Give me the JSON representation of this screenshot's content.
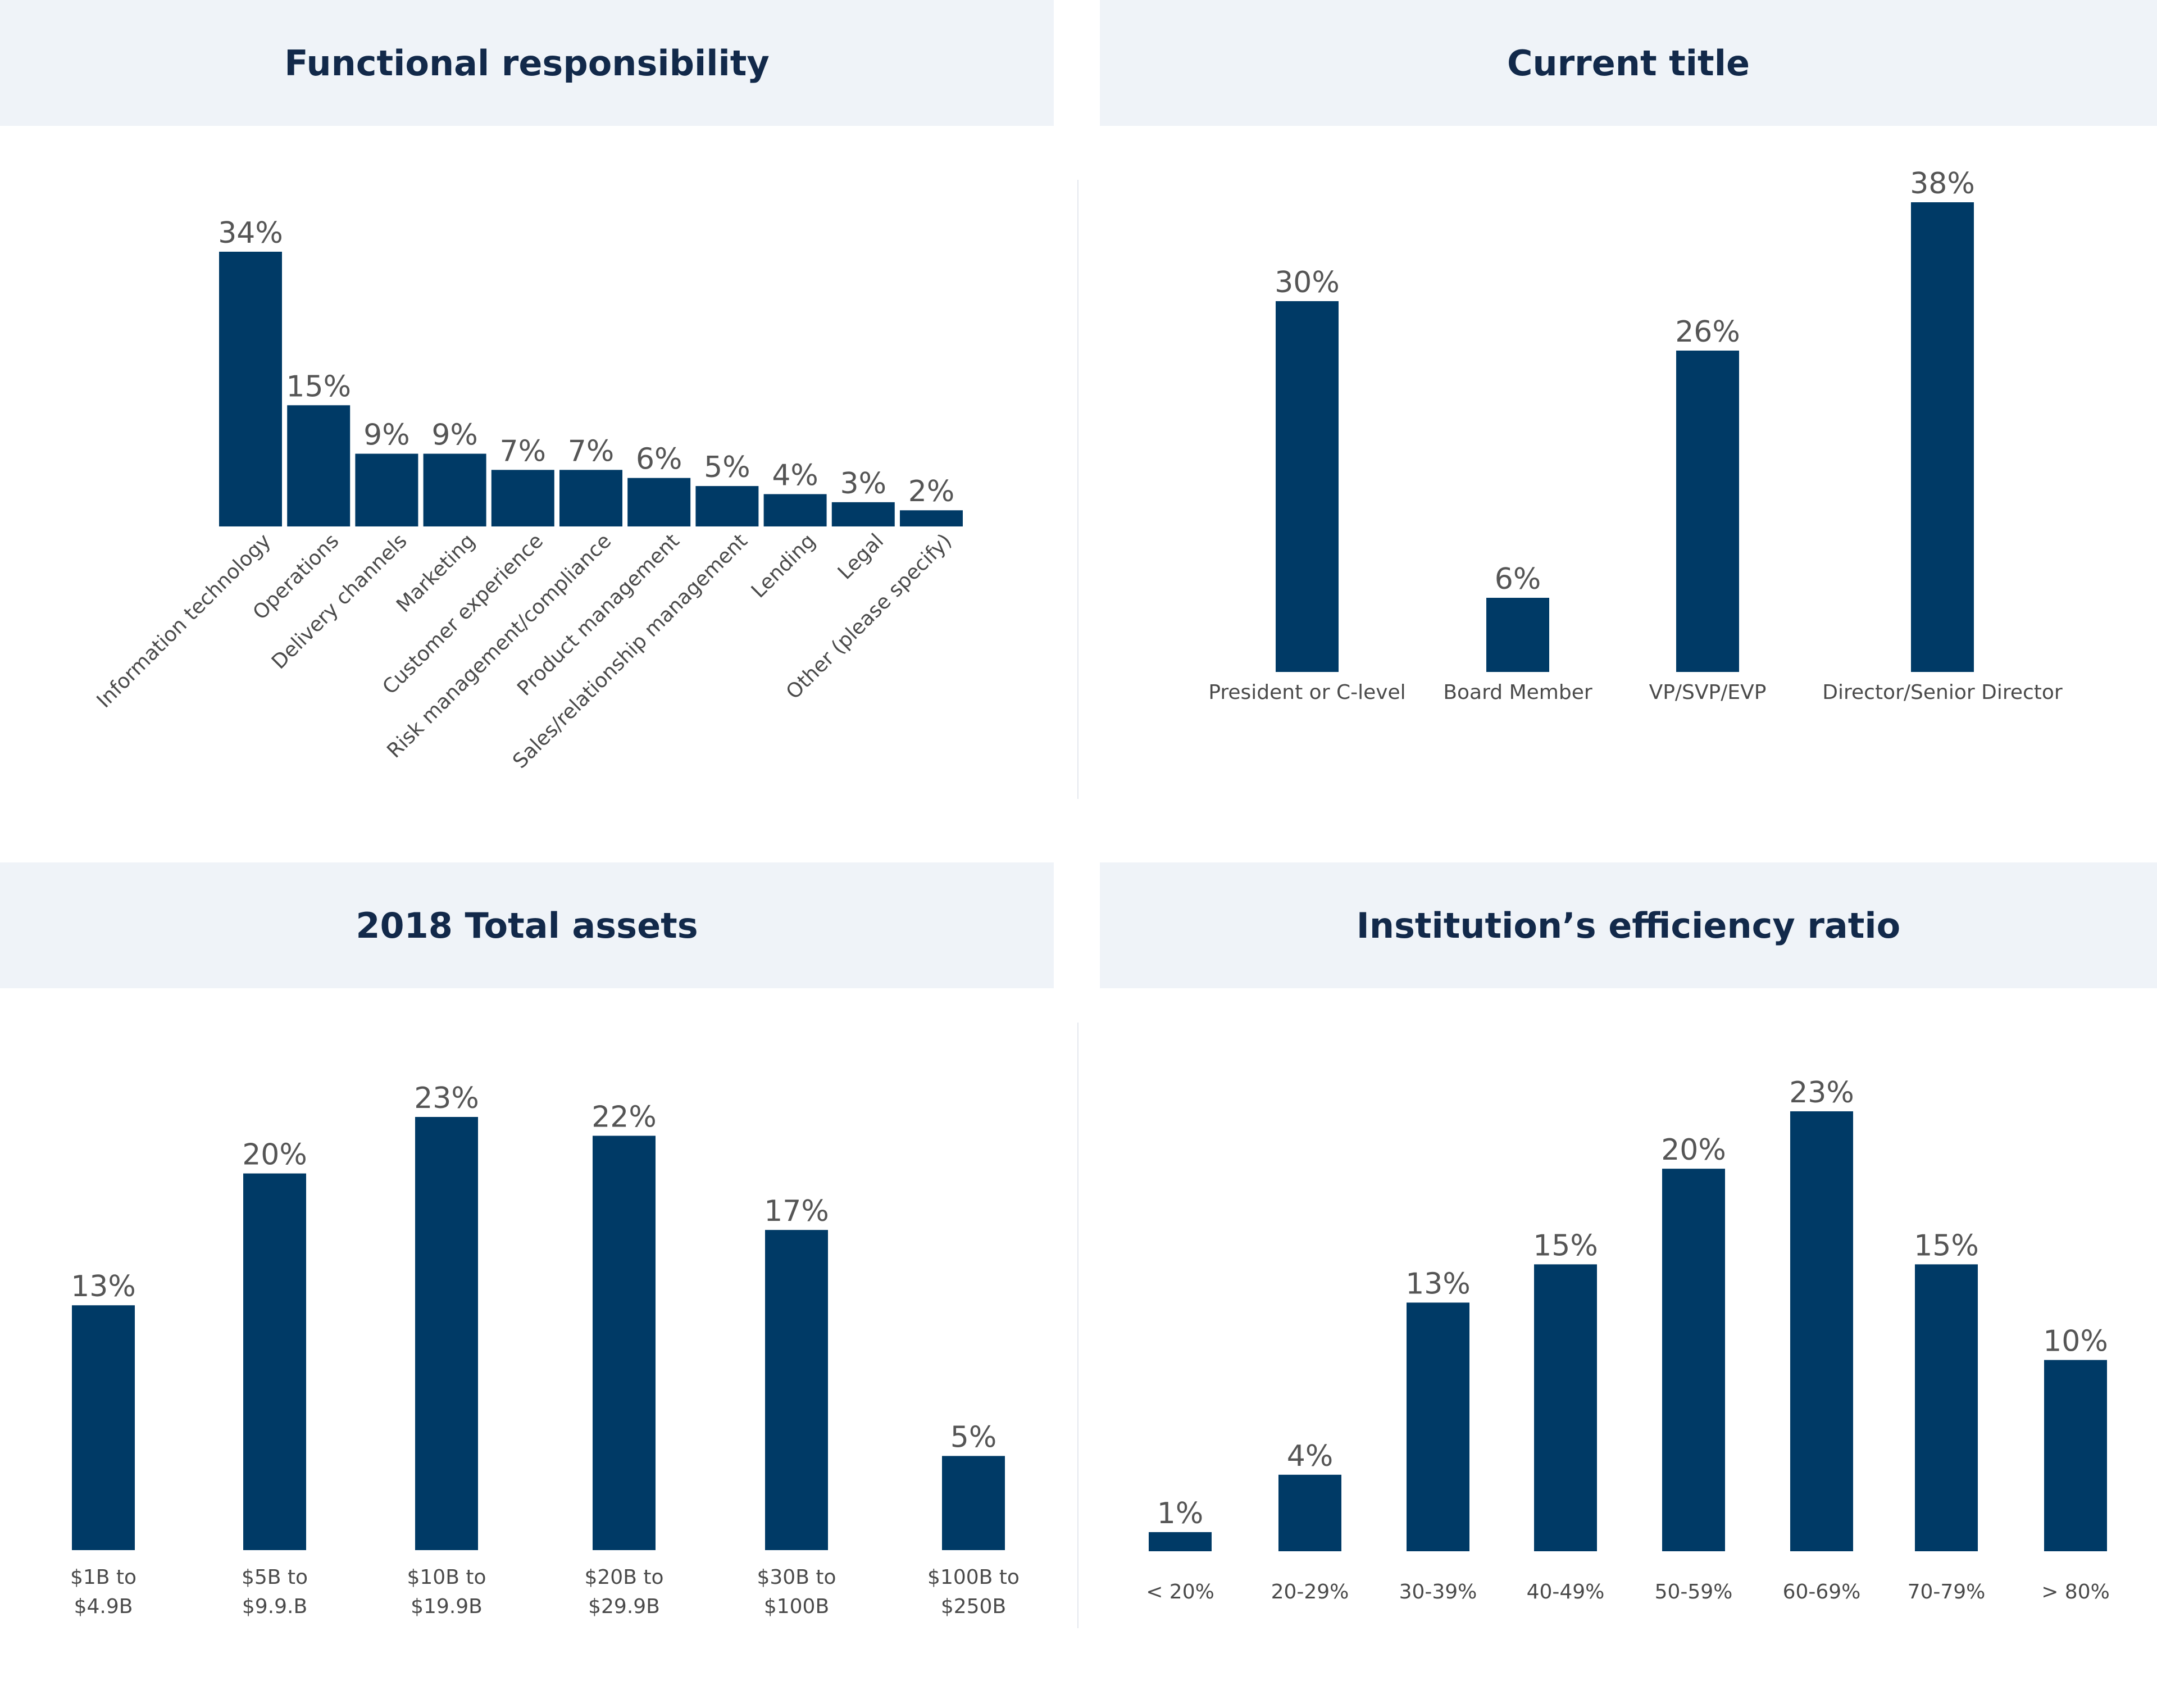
{
  "colors": {
    "bar": "#003a66",
    "header_bg": "#eff3f8",
    "title": "#12294a",
    "label": "#555555"
  },
  "chart_data": [
    {
      "id": "functional",
      "type": "bar",
      "title": "Functional responsibility",
      "categories": [
        "Information technology",
        "Operations",
        "Delivery channels",
        "Marketing",
        "Customer experience",
        "Risk management/compliance",
        "Product management",
        "Sales/relationship management",
        "Lending",
        "Legal",
        "Other (please specify)"
      ],
      "values": [
        34,
        15,
        9,
        9,
        7,
        7,
        6,
        5,
        4,
        3,
        2
      ],
      "value_labels": [
        "34%",
        "15%",
        "9%",
        "9%",
        "7%",
        "7%",
        "6%",
        "5%",
        "4%",
        "3%",
        "2%"
      ],
      "xlabel": "",
      "ylabel": "",
      "ylim": [
        0,
        34
      ]
    },
    {
      "id": "title",
      "type": "bar",
      "title": "Current title",
      "categories": [
        "President or C-level",
        "Board Member",
        "VP/SVP/EVP",
        "Director/Senior Director"
      ],
      "values": [
        30,
        6,
        26,
        38
      ],
      "value_labels": [
        "30%",
        "6%",
        "26%",
        "38%"
      ],
      "xlabel": "",
      "ylabel": "",
      "ylim": [
        0,
        38
      ]
    },
    {
      "id": "assets",
      "type": "bar",
      "title": "2018 Total assets",
      "categories": [
        [
          "$1B to",
          "$4.9B"
        ],
        [
          "$5B to",
          "$9.9.B"
        ],
        [
          "$10B to",
          "$19.9B"
        ],
        [
          "$20B to",
          "$29.9B"
        ],
        [
          "$30B to",
          "$100B"
        ],
        [
          "$100B to",
          "$250B"
        ]
      ],
      "values": [
        13,
        20,
        23,
        22,
        17,
        5
      ],
      "value_labels": [
        "13%",
        "20%",
        "23%",
        "22%",
        "17%",
        "5%"
      ],
      "xlabel": "",
      "ylabel": "",
      "ylim": [
        0,
        23
      ]
    },
    {
      "id": "efficiency",
      "type": "bar",
      "title": "Institution’s efficiency ratio",
      "categories": [
        "< 20%",
        "20-29%",
        "30-39%",
        "40-49%",
        "50-59%",
        "60-69%",
        "70-79%",
        "> 80%"
      ],
      "values": [
        1,
        4,
        13,
        15,
        20,
        23,
        15,
        10
      ],
      "value_labels": [
        "1%",
        "4%",
        "13%",
        "15%",
        "20%",
        "23%",
        "15%",
        "10%"
      ],
      "xlabel": "",
      "ylabel": "",
      "ylim": [
        0,
        23
      ]
    }
  ]
}
